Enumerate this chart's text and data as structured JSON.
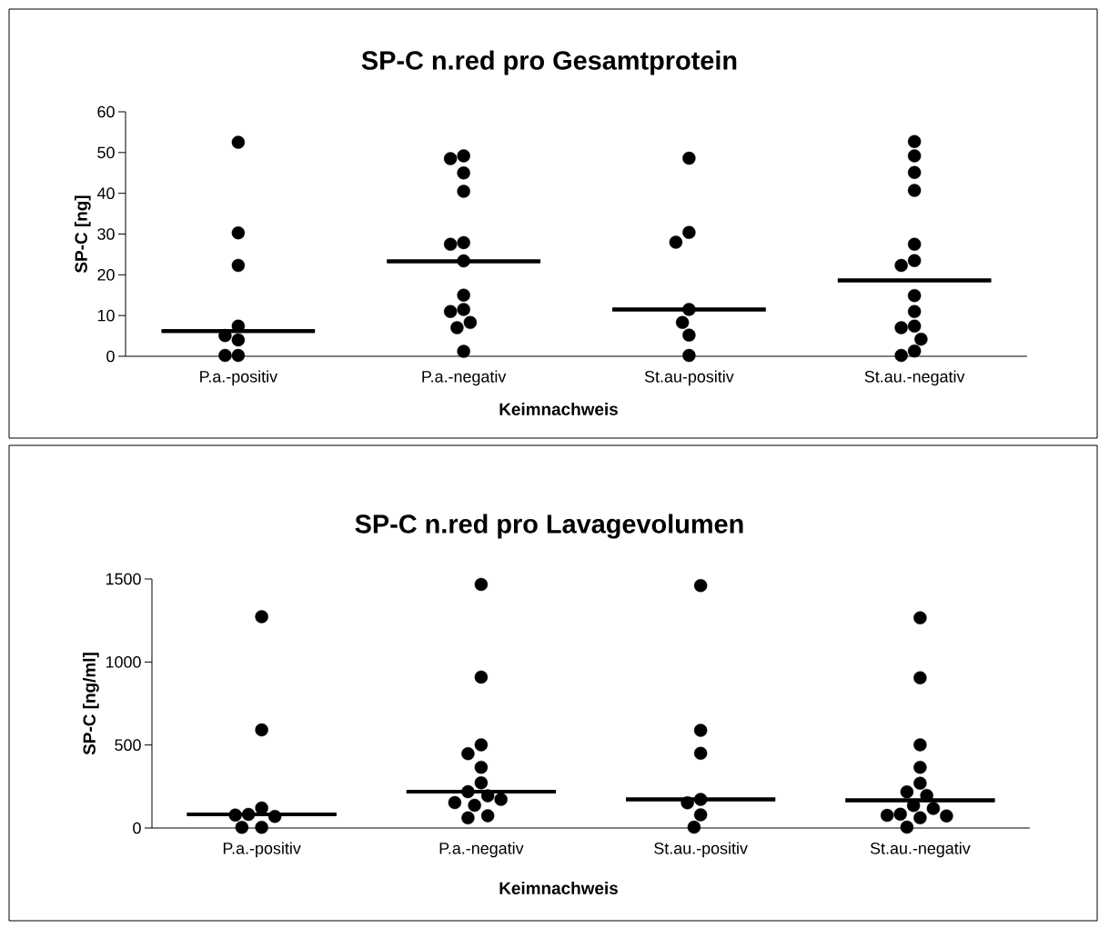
{
  "chart_data": [
    {
      "type": "scatter",
      "title": "SP-C n.red pro Gesamtprotein",
      "xlabel": "Keimnachweis",
      "ylabel": "SP-C [ng]",
      "categories": [
        "P.a.-positiv",
        "P.a.-negativ",
        "St.au-positiv",
        "St.au.-negativ"
      ],
      "ylim": [
        0,
        60
      ],
      "yticks": [
        0,
        10,
        20,
        30,
        40,
        50,
        60
      ],
      "grid": false,
      "series": [
        {
          "color": "#000000",
          "x": [
            "P.a.-positiv",
            "P.a.-positiv",
            "P.a.-positiv",
            "P.a.-positiv",
            "P.a.-positiv",
            "P.a.-positiv",
            "P.a.-positiv",
            "P.a.-positiv",
            "P.a.-negativ",
            "P.a.-negativ",
            "P.a.-negativ",
            "P.a.-negativ",
            "P.a.-negativ",
            "P.a.-negativ",
            "P.a.-negativ",
            "P.a.-negativ",
            "P.a.-negativ",
            "P.a.-negativ",
            "P.a.-negativ",
            "P.a.-negativ",
            "P.a.-negativ",
            "St.au-positiv",
            "St.au-positiv",
            "St.au-positiv",
            "St.au-positiv",
            "St.au-positiv",
            "St.au-positiv",
            "St.au-positiv",
            "St.au.-negativ",
            "St.au.-negativ",
            "St.au.-negativ",
            "St.au.-negativ",
            "St.au.-negativ",
            "St.au.-negativ",
            "St.au.-negativ",
            "St.au.-negativ",
            "St.au.-negativ",
            "St.au.-negativ",
            "St.au.-negativ",
            "St.au.-negativ",
            "St.au.-negativ",
            "St.au.-negativ"
          ],
          "values": [
            52.5,
            30.3,
            22.3,
            7.4,
            5.1,
            4.0,
            0.2,
            0.2,
            49.2,
            48.5,
            45.0,
            40.5,
            27.9,
            27.5,
            23.4,
            15.0,
            11.5,
            11.0,
            8.3,
            7.0,
            1.2,
            48.6,
            30.4,
            28.0,
            11.5,
            8.3,
            5.2,
            0.2,
            52.7,
            49.2,
            45.1,
            40.7,
            27.5,
            23.5,
            22.3,
            14.9,
            11.0,
            7.4,
            7.0,
            4.2,
            1.3,
            0.2
          ]
        },
        {
          "type": "box",
          "color": "#000000",
          "boxes": [
            {
              "low": 6.2,
              "q1": 6.2,
              "median": 6.2,
              "q3": 6.2,
              "high": 6.2
            },
            {
              "low": 23.3,
              "q1": 23.3,
              "median": 23.3,
              "q3": 23.3,
              "high": 23.3
            },
            {
              "low": 11.5,
              "q1": 11.5,
              "median": 11.5,
              "q3": 11.5,
              "high": 11.5
            },
            {
              "low": 18.6,
              "q1": 18.6,
              "median": 18.6,
              "q3": 18.6,
              "high": 18.6
            }
          ]
        }
      ]
    },
    {
      "type": "scatter",
      "title": "SP-C n.red pro Lavagevolumen",
      "xlabel": "Keimnachweis",
      "ylabel": "SP-C [ng/ml]",
      "categories": [
        "P.a.-positiv",
        "P.a.-negativ",
        "St.au.-positiv",
        "St.au.-negativ"
      ],
      "ylim": [
        0,
        1500
      ],
      "yticks": [
        0,
        500,
        1000,
        1500
      ],
      "grid": false,
      "series": [
        {
          "color": "#000000",
          "x": [
            "P.a.-positiv",
            "P.a.-positiv",
            "P.a.-positiv",
            "P.a.-positiv",
            "P.a.-positiv",
            "P.a.-positiv",
            "P.a.-positiv",
            "P.a.-positiv",
            "P.a.-negativ",
            "P.a.-negativ",
            "P.a.-negativ",
            "P.a.-negativ",
            "P.a.-negativ",
            "P.a.-negativ",
            "P.a.-negativ",
            "P.a.-negativ",
            "P.a.-negativ",
            "P.a.-negativ",
            "P.a.-negativ",
            "P.a.-negativ",
            "P.a.-negativ",
            "St.au.-positiv",
            "St.au.-positiv",
            "St.au.-positiv",
            "St.au.-positiv",
            "St.au.-positiv",
            "St.au.-positiv",
            "St.au.-positiv",
            "St.au.-negativ",
            "St.au.-negativ",
            "St.au.-negativ",
            "St.au.-negativ",
            "St.au.-negativ",
            "St.au.-negativ",
            "St.au.-negativ",
            "St.au.-negativ",
            "St.au.-negativ",
            "St.au.-negativ",
            "St.au.-negativ",
            "St.au.-negativ",
            "St.au.-negativ",
            "St.au.-negativ"
          ],
          "values": [
            1273,
            591,
            121,
            82,
            70,
            78,
            4,
            4,
            1467,
            909,
            501,
            448,
            366,
            272,
            219,
            194,
            172,
            153,
            137,
            74,
            61,
            1460,
            588,
            450,
            172,
            152,
            80,
            5,
            1266,
            905,
            501,
            365,
            270,
            218,
            196,
            136,
            118,
            83,
            73,
            62,
            76,
            5
          ]
        },
        {
          "type": "box",
          "color": "#000000",
          "boxes": [
            {
              "low": 82,
              "q1": 82,
              "median": 82,
              "q3": 82,
              "high": 82
            },
            {
              "low": 219,
              "q1": 219,
              "median": 219,
              "q3": 219,
              "high": 219
            },
            {
              "low": 172,
              "q1": 172,
              "median": 172,
              "q3": 172,
              "high": 172
            },
            {
              "low": 167,
              "q1": 167,
              "median": 167,
              "q3": 167,
              "high": 167
            }
          ]
        }
      ]
    }
  ]
}
